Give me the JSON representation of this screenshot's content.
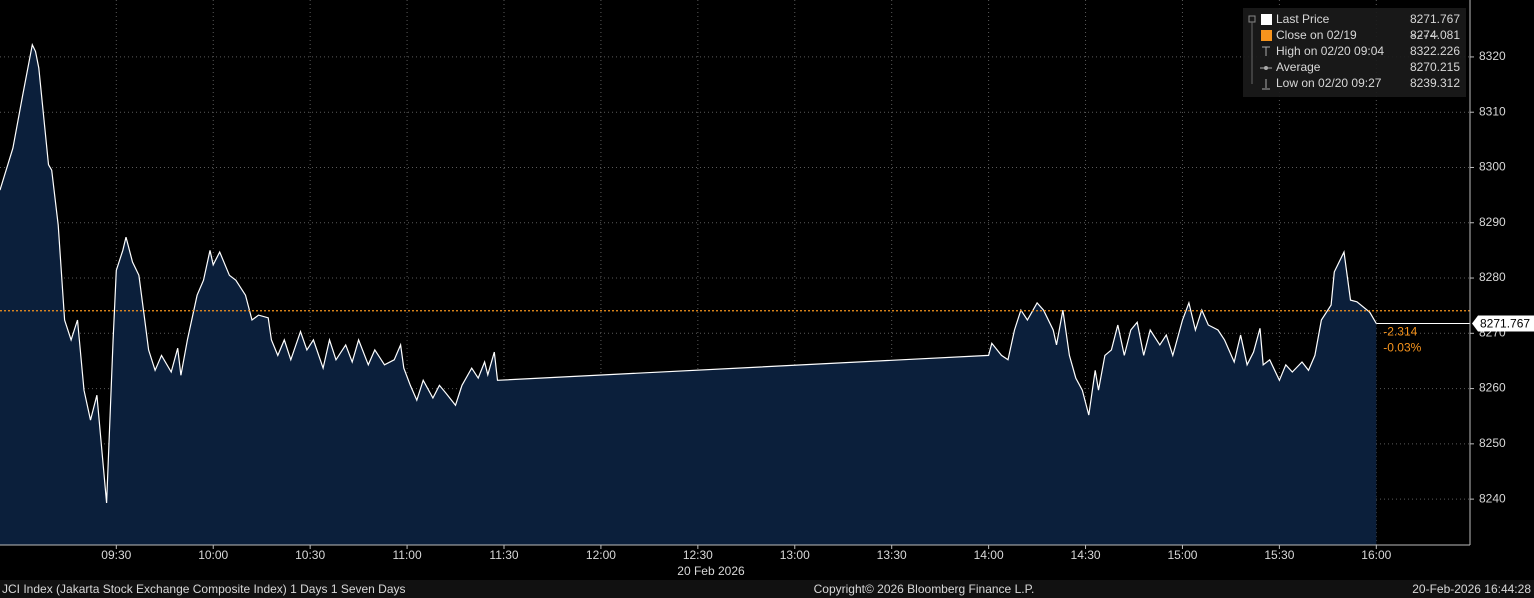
{
  "chart_data": {
    "type": "area",
    "x": [
      "08:54",
      "08:58",
      "09:01",
      "09:04",
      "09:05",
      "09:06",
      "09:09",
      "09:10",
      "09:12",
      "09:14",
      "09:16",
      "09:18",
      "09:20",
      "09:22",
      "09:24",
      "09:27",
      "09:29",
      "09:30",
      "09:32",
      "09:33",
      "09:35",
      "09:37",
      "09:39",
      "09:40",
      "09:42",
      "09:44",
      "09:47",
      "09:49",
      "09:50",
      "09:52",
      "09:55",
      "09:57",
      "09:59",
      "10:00",
      "10:02",
      "10:05",
      "10:07",
      "10:10",
      "10:12",
      "10:14",
      "10:17",
      "10:18",
      "10:20",
      "10:22",
      "10:24",
      "10:27",
      "10:29",
      "10:31",
      "10:34",
      "10:36",
      "10:38",
      "10:41",
      "10:43",
      "10:45",
      "10:48",
      "10:50",
      "10:53",
      "10:56",
      "10:58",
      "10:59",
      "11:01",
      "11:03",
      "11:05",
      "11:08",
      "11:10",
      "11:12",
      "11:15",
      "11:17",
      "11:20",
      "11:22",
      "11:24",
      "11:25",
      "11:27",
      "11:28",
      "14:00",
      "14:01",
      "14:04",
      "14:06",
      "14:08",
      "14:10",
      "14:12",
      "14:15",
      "14:17",
      "14:20",
      "14:21",
      "14:23",
      "14:25",
      "14:27",
      "14:29",
      "14:31",
      "14:33",
      "14:34",
      "14:36",
      "14:38",
      "14:40",
      "14:42",
      "14:44",
      "14:46",
      "14:48",
      "14:50",
      "14:53",
      "14:55",
      "14:57",
      "15:00",
      "15:02",
      "15:04",
      "15:06",
      "15:08",
      "15:11",
      "15:13",
      "15:16",
      "15:18",
      "15:20",
      "15:22",
      "15:24",
      "15:25",
      "15:27",
      "15:30",
      "15:32",
      "15:34",
      "15:37",
      "15:39",
      "15:41",
      "15:43",
      "15:46",
      "15:47",
      "15:50",
      "15:52",
      "15:54",
      "15:58",
      "16:00"
    ],
    "series": [
      {
        "name": "Last Price",
        "color": "#ffffff",
        "fill": "#0b1f3b",
        "values": [
          8295.9,
          8303.5,
          8313,
          8322.2,
          8321,
          8318,
          8300.5,
          8299.5,
          8289.6,
          8272.4,
          8268.8,
          8272.4,
          8259.7,
          8254.3,
          8258.8,
          8239.3,
          8268.8,
          8281.4,
          8285,
          8287.4,
          8282.9,
          8280.5,
          8271.5,
          8267,
          8263.3,
          8266,
          8263,
          8267.3,
          8262.4,
          8268.8,
          8276.9,
          8279.6,
          8285,
          8282.4,
          8284.7,
          8280.5,
          8279.6,
          8276.9,
          8272.4,
          8273.3,
          8272.8,
          8268.8,
          8266,
          8268.8,
          8265.2,
          8270.3,
          8267,
          8268.8,
          8263.7,
          8268.8,
          8265.2,
          8267.9,
          8264.8,
          8268.8,
          8264.3,
          8267,
          8264.3,
          8265.2,
          8267.9,
          8263.7,
          8260.6,
          8257.9,
          8261.5,
          8258.3,
          8260.6,
          8259.2,
          8257,
          8260.6,
          8263.7,
          8261.9,
          8264.8,
          8262.5,
          8266.6,
          8261.5,
          8266,
          8268.2,
          8266,
          8265.2,
          8270.6,
          8274.2,
          8272.4,
          8275.5,
          8274.2,
          8270.6,
          8267.9,
          8274.2,
          8266,
          8261.9,
          8259.7,
          8255.2,
          8263.3,
          8259.7,
          8266,
          8267,
          8271.5,
          8266,
          8270.6,
          8272,
          8266,
          8270.6,
          8267.9,
          8269.7,
          8266,
          8272.4,
          8275.5,
          8270.6,
          8274.2,
          8271.5,
          8270.6,
          8268.8,
          8264.8,
          8269.7,
          8264.3,
          8266.6,
          8270.9,
          8264.3,
          8265.2,
          8261.5,
          8264.3,
          8263,
          8264.8,
          8263.3,
          8266,
          8272.4,
          8275.1,
          8281.1,
          8284.7,
          8276,
          8275.7,
          8273.8,
          8271.767
        ]
      }
    ],
    "reference_line": {
      "name": "Close on 02/19",
      "value": 8274.081,
      "color": "#f7941d"
    },
    "legend": [
      {
        "name": "Last Price",
        "value": 8271.767,
        "color": "#ffffff"
      },
      {
        "name": "Close on 02/19",
        "value": 8274.081,
        "color": "#f7941d"
      },
      {
        "name": "High on 02/20 09:04",
        "value": 8322.226
      },
      {
        "name": "Average",
        "value": 8270.215
      },
      {
        "name": "Low on 02/20 09:27",
        "value": 8239.312
      }
    ],
    "change": {
      "values": [
        -2.314,
        -0.03
      ],
      "value_labels": [
        "-2.314",
        "-0.03%"
      ],
      "color": "#f7941d"
    },
    "xlabel": "20 Feb 2026",
    "xlim": [
      "08:54",
      "16:29"
    ],
    "xticks": [
      "09:30",
      "10:00",
      "10:30",
      "11:00",
      "11:30",
      "12:00",
      "12:30",
      "13:00",
      "13:30",
      "14:00",
      "14:30",
      "15:00",
      "15:30",
      "16:00"
    ],
    "ylim": [
      8231.7,
      8330.3
    ],
    "yticks": [
      8240,
      8250,
      8260,
      8270,
      8280,
      8290,
      8300,
      8310,
      8320
    ],
    "grid": true,
    "footer": {
      "left": "JCI Index (Jakarta Stock Exchange Composite Index) 1 Days 1 Seven Days",
      "center": "Copyright© 2026 Bloomberg Finance L.P.",
      "right": "20-Feb-2026 16:44:28"
    }
  }
}
